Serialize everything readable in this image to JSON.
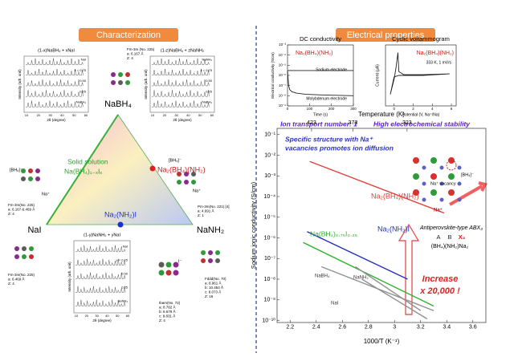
{
  "characterization": {
    "title": "Characterization",
    "ternary": {
      "top": "NaBH₄",
      "left": "NaI",
      "right": "NaNH₂",
      "compound_a": "Na₂(BH₄)(NH₂)",
      "compound_b": "Na₂(NH₂)I",
      "solid_solution": [
        "Solid solution",
        "Na(BH₄)₁₋ₓIₓ"
      ]
    },
    "xrd_xlabel": "2θ (degree)",
    "xrd_ylabel": "Intensity (arb. unit)",
    "xrd_xticks": [
      10,
      20,
      30,
      40,
      50,
      60
    ],
    "xrd": [
      {
        "title": "(1-x)NaBH₄ + xNaI",
        "traces": [
          "NaI",
          "x = 0.75",
          "0.50",
          "0.25",
          "NaBH₄"
        ]
      },
      {
        "title": "(1-z)NaBH₄ + zNaNH₂",
        "traces": [
          "NaNH₂",
          "z = 0.75",
          "0.50",
          "0.25",
          "NaBH₄"
        ]
      },
      {
        "title": "(1-y)NaNH₂ + yNaI",
        "traces": [
          "NaI",
          "y = 0.75",
          "0.50",
          "0.25",
          "NaNH₂"
        ]
      }
    ],
    "structures": [
      [
        "Fm-3m (No. 225)",
        "a: 6.167 Å",
        "Z: 4"
      ],
      [
        "Fm-3m(No. 225)",
        "a: 6.167-6.469 Å",
        "Z: 4"
      ],
      [
        "Pm-3m(No. 221) [4]",
        "a: 4.691 Å",
        "Z: 1"
      ],
      [
        "Fm-3m(No. 225)",
        "a: 6.469 Å",
        "Z: 4"
      ],
      [
        "Ibam(No. 72)",
        "a: 8.782 Å",
        "b: 6.679 Å",
        "c: 9.831 Å",
        "Z: 4"
      ],
      [
        "Fddd(No. 70)",
        "a: 8.961 Å",
        "b: 10.454 Å",
        "c: 8.073 Å",
        "Z: 16"
      ]
    ],
    "ion_labels": [
      "[BH₄]⁻",
      "Na⁺",
      "[BH₄]⁻",
      "Na⁺",
      "I⁻"
    ]
  },
  "electrical": {
    "title": "Electrical properties",
    "dc": {
      "title": "DC conductivity",
      "xlabel": "Time (s)",
      "ylabel": "Electrical conductivity (S/cm)",
      "compound": "Na₂(BH₄)(NH₂)",
      "xlim": [
        0,
        300
      ],
      "xticks": [
        0,
        100,
        200,
        300
      ],
      "yscale": "log",
      "ylim": [
        1e-09,
        0.001
      ],
      "yticks": [
        {
          "value": 1e-09,
          "label": "10⁻⁹"
        },
        {
          "value": 1e-08,
          "label": "10⁻⁸"
        },
        {
          "value": 1e-07,
          "label": "10⁻⁷"
        },
        {
          "value": 1e-06,
          "label": "10⁻⁶"
        },
        {
          "value": 1e-05,
          "label": "10⁻⁵"
        },
        {
          "value": 0.0001,
          "label": "10⁻⁴"
        },
        {
          "value": 0.001,
          "label": "10⁻³"
        }
      ],
      "series": [
        {
          "name": "Sodium electrode",
          "color": "#222222",
          "x": [
            0,
            300
          ],
          "values": [
            3e-06,
            3e-06
          ]
        },
        {
          "name": "Molybdenum electrode",
          "color": "#222222",
          "x": [
            0,
            5,
            10,
            20,
            40,
            80,
            150,
            300
          ],
          "values": [
            3e-06,
            1e-07,
            4e-08,
            2.5e-08,
            1.8e-08,
            1.4e-08,
            1.2e-08,
            1e-08
          ]
        }
      ],
      "note": "Ion transport number: 1"
    },
    "cv": {
      "title": "Cyclic voltammogram",
      "xlabel": "Potential (V, Na⁺/Na)",
      "ylabel": "Current (μA)",
      "compound": "Na₂(BH₄)(NH₂)",
      "condition": "333 K, 1 mV/s",
      "xlim": [
        -0.9,
        6.5
      ],
      "xticks": [
        0,
        2,
        4,
        6
      ],
      "ylim": [
        -40,
        40
      ],
      "series": [
        {
          "color": "#222222",
          "x": [
            -0.4,
            0,
            0.2,
            0.4,
            0.5,
            1,
            3,
            5.8,
            3,
            1,
            0.5,
            0,
            -0.4
          ],
          "values": [
            -25,
            -5,
            10,
            30,
            5,
            1,
            1,
            2,
            0,
            0,
            0,
            -2,
            -25
          ]
        }
      ],
      "note": "High electrochemical stability"
    },
    "arrhenius": {
      "ylabel": "Sodium ionic conductivity (S/cm)",
      "xlabel": "1000/T (K⁻¹)",
      "top_label": "Temperature (K)",
      "top_ticks": [
        423,
        373,
        323
      ],
      "xlim": [
        2.1,
        3.7
      ],
      "xticks": [
        2.2,
        2.4,
        2.6,
        2.8,
        3.0,
        3.2,
        3.4,
        3.6
      ],
      "yscale": "log",
      "ylim": [
        8e-11,
        0.2
      ],
      "yticks": [
        {
          "value": 1e-10,
          "label": "10⁻¹⁰"
        },
        {
          "value": 1e-09,
          "label": "10⁻⁹"
        },
        {
          "value": 1e-08,
          "label": "10⁻⁸"
        },
        {
          "value": 1e-07,
          "label": "10⁻⁷"
        },
        {
          "value": 1e-06,
          "label": "10⁻⁶"
        },
        {
          "value": 1e-05,
          "label": "10⁻⁵"
        },
        {
          "value": 0.0001,
          "label": "10⁻⁴"
        },
        {
          "value": 0.001,
          "label": "10⁻³"
        },
        {
          "value": 0.01,
          "label": "10⁻²"
        },
        {
          "value": 0.1,
          "label": "10⁻¹"
        }
      ],
      "series": [
        {
          "name": "Na₂(BH₄)(NH₂)",
          "color": "#e0403a",
          "x": [
            2.35,
            3.38
          ],
          "values": [
            0.005,
            1.6e-05
          ]
        },
        {
          "name": "Na₂(NH₂)I",
          "color": "#2030c0",
          "x": [
            2.33,
            3.1
          ],
          "values": [
            2e-06,
            1e-08
          ]
        },
        {
          "name": "Na(BH₄)₀.₇₅I₀.₂₅",
          "color": "#30b030",
          "x": [
            2.3,
            3.3
          ],
          "values": [
            6e-07,
            5e-10
          ]
        },
        {
          "name": "NaBH₄",
          "color": "#909090",
          "x": [
            2.44,
            3.3
          ],
          "values": [
            4e-08,
            3e-10
          ]
        },
        {
          "name": "NaNH₂",
          "color": "#909090",
          "x": [
            2.7,
            3.2
          ],
          "values": [
            4e-08,
            3e-10
          ]
        },
        {
          "name": "NaI",
          "color": "#909090",
          "x": [
            2.75,
            3.25
          ],
          "values": [
            1e-08,
            1.2e-10
          ]
        }
      ],
      "annotation": [
        "Specific structure with Na⁺",
        "vacancies promotes ion diffusion"
      ],
      "increase": [
        "Increase",
        "x 20,000 !"
      ],
      "structure_title": "Antiperovskite-type ABX₃",
      "structure_sites": [
        "A",
        "B",
        "X₃"
      ],
      "structure_formula": "(BH₄)(NH₂)Na₂",
      "vacancy_label": "Na⁺ vacancy",
      "ion_labels": [
        "[BH₄]⁻",
        "Na⁺"
      ]
    }
  }
}
